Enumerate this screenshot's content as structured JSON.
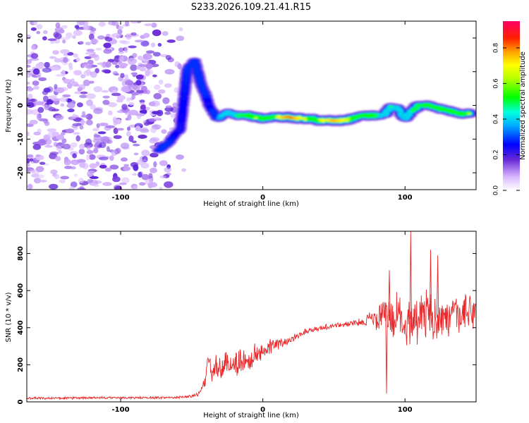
{
  "title": "S233.2026.109.21.41.R15",
  "chart_data": [
    {
      "type": "heatmap",
      "xlabel": "Height of straight line (km)",
      "ylabel": "Frequency (Hz)",
      "xlim": [
        -166,
        150
      ],
      "ylim": [
        -25,
        25
      ],
      "xticks": [
        -100,
        0,
        100
      ],
      "xtick_labels": [
        "-100",
        "0",
        "100"
      ],
      "yticks": [
        -20,
        -10,
        0,
        10,
        20
      ],
      "ytick_labels": [
        "-20",
        "-10",
        "0",
        "10",
        "20"
      ],
      "colorbar": {
        "label": "Normalized spectral amplitude",
        "range": [
          0,
          0.95
        ],
        "ticks": [
          0,
          0.2,
          0.4,
          0.6,
          0.8
        ],
        "tick_labels": [
          "0.0",
          "0.2",
          "0.4",
          "0.6",
          "0.8"
        ],
        "colors": [
          "#ffffff",
          "#8a2be2",
          "#0000ff",
          "#00c8ff",
          "#00ff00",
          "#ffff00",
          "#ff8000",
          "#ff0000",
          "#ff0066"
        ]
      },
      "noise_region": {
        "x": [
          -166,
          -62
        ],
        "y": [
          -25,
          25
        ],
        "level": 0.15
      },
      "ridge": [
        {
          "x": -73,
          "y": -13,
          "a": 0.35
        },
        {
          "x": -66,
          "y": -11,
          "a": 0.3
        },
        {
          "x": -58,
          "y": -7,
          "a": 0.25
        },
        {
          "x": -53,
          "y": 11,
          "a": 0.3
        },
        {
          "x": -48,
          "y": 13,
          "a": 0.35
        },
        {
          "x": -44,
          "y": 7,
          "a": 0.3
        },
        {
          "x": -40,
          "y": 3,
          "a": 0.3
        },
        {
          "x": -38,
          "y": 0,
          "a": 0.25
        },
        {
          "x": -32,
          "y": -4,
          "a": 0.35
        },
        {
          "x": -25,
          "y": -2,
          "a": 0.45
        },
        {
          "x": -18,
          "y": -3,
          "a": 0.5
        },
        {
          "x": -10,
          "y": -3,
          "a": 0.55
        },
        {
          "x": -5,
          "y": -3.5,
          "a": 0.7
        },
        {
          "x": 0,
          "y": -4,
          "a": 0.6
        },
        {
          "x": 5,
          "y": -3.5,
          "a": 0.65
        },
        {
          "x": 10,
          "y": -3.5,
          "a": 0.7
        },
        {
          "x": 15,
          "y": -3.5,
          "a": 0.8
        },
        {
          "x": 20,
          "y": -3.5,
          "a": 0.85
        },
        {
          "x": 25,
          "y": -3.8,
          "a": 0.75
        },
        {
          "x": 30,
          "y": -4,
          "a": 0.7
        },
        {
          "x": 35,
          "y": -4,
          "a": 0.65
        },
        {
          "x": 40,
          "y": -4.5,
          "a": 0.7
        },
        {
          "x": 45,
          "y": -4.5,
          "a": 0.75
        },
        {
          "x": 50,
          "y": -4.5,
          "a": 0.8
        },
        {
          "x": 55,
          "y": -4.5,
          "a": 0.75
        },
        {
          "x": 60,
          "y": -4.3,
          "a": 0.7
        },
        {
          "x": 65,
          "y": -3.5,
          "a": 0.6
        },
        {
          "x": 70,
          "y": -3,
          "a": 0.6
        },
        {
          "x": 75,
          "y": -3,
          "a": 0.65
        },
        {
          "x": 80,
          "y": -3,
          "a": 0.5
        },
        {
          "x": 85,
          "y": -3,
          "a": 0.45
        },
        {
          "x": 90,
          "y": -0.5,
          "a": 0.5
        },
        {
          "x": 95,
          "y": -1,
          "a": 0.45
        },
        {
          "x": 100,
          "y": -4,
          "a": 0.4
        },
        {
          "x": 105,
          "y": -1.5,
          "a": 0.5
        },
        {
          "x": 110,
          "y": 0,
          "a": 0.65
        },
        {
          "x": 115,
          "y": 0,
          "a": 0.6
        },
        {
          "x": 120,
          "y": -0.5,
          "a": 0.55
        },
        {
          "x": 125,
          "y": -1,
          "a": 0.55
        },
        {
          "x": 130,
          "y": -1.5,
          "a": 0.6
        },
        {
          "x": 135,
          "y": -2,
          "a": 0.55
        },
        {
          "x": 140,
          "y": -2.5,
          "a": 0.6
        },
        {
          "x": 145,
          "y": -2.5,
          "a": 0.7
        }
      ]
    },
    {
      "type": "line",
      "xlabel": "Height of straight line (km)",
      "ylabel": "SNR (10 * v/v)",
      "xlim": [
        -166,
        150
      ],
      "ylim": [
        0,
        920
      ],
      "xticks": [
        -100,
        0,
        100
      ],
      "xtick_labels": [
        "-100",
        "0",
        "100"
      ],
      "yticks": [
        0,
        200,
        400,
        600,
        800
      ],
      "ytick_labels": [
        "0",
        "200",
        "400",
        "600",
        "800"
      ],
      "color": "#e8282a",
      "series": [
        {
          "name": "SNR",
          "x": [
            -166,
            -140,
            -110,
            -80,
            -60,
            -50,
            -45,
            -42,
            -40,
            -38,
            -35,
            -30,
            -25,
            -20,
            -15,
            -10,
            -5,
            0,
            5,
            10,
            15,
            20,
            25,
            30,
            35,
            40,
            45,
            50,
            55,
            60,
            65,
            70,
            75,
            80,
            85,
            90,
            95,
            100,
            105,
            110,
            115,
            120,
            125,
            130,
            135,
            140,
            145,
            150
          ],
          "values": [
            20,
            20,
            22,
            22,
            24,
            30,
            45,
            80,
            150,
            200,
            170,
            180,
            200,
            210,
            220,
            220,
            250,
            280,
            300,
            310,
            320,
            340,
            360,
            380,
            390,
            395,
            405,
            410,
            415,
            420,
            425,
            430,
            450,
            440,
            470,
            460,
            450,
            430,
            450,
            460,
            470,
            460,
            450,
            440,
            460,
            470,
            480,
            480
          ],
          "noise": [
            6,
            6,
            6,
            6,
            6,
            8,
            12,
            25,
            55,
            75,
            70,
            70,
            70,
            70,
            70,
            65,
            60,
            50,
            40,
            30,
            25,
            20,
            18,
            15,
            15,
            15,
            15,
            15,
            15,
            15,
            18,
            20,
            40,
            60,
            90,
            110,
            130,
            140,
            130,
            130,
            120,
            120,
            110,
            100,
            100,
            95,
            90,
            90
          ]
        }
      ],
      "spikes": [
        {
          "x": 104,
          "y": 920
        },
        {
          "x": 87,
          "y": 45
        },
        {
          "x": 89,
          "y": 710
        },
        {
          "x": 118,
          "y": 820
        },
        {
          "x": 123,
          "y": 790
        }
      ]
    }
  ]
}
